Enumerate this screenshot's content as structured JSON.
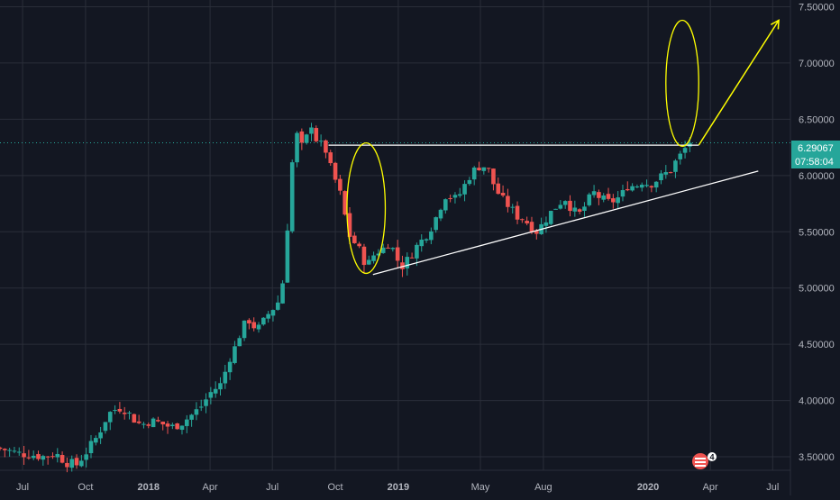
{
  "theme": {
    "background": "#131722",
    "grid": "#2a2e39",
    "axis_text": "#b2b5be",
    "up": "#26a69a",
    "down": "#ef5350",
    "annotation_yellow": "#ffff00",
    "annotation_white": "#ffffff",
    "price_line": "#26a69a"
  },
  "price_badge": {
    "price": "6.29067",
    "countdown": "07:58:04"
  },
  "overlay_icon": {
    "name": "us-flag-icon",
    "count": "4"
  },
  "chart_data": {
    "type": "candlestick",
    "title": "",
    "xlabel": "",
    "ylabel": "",
    "ylim": [
      3.38,
      7.56
    ],
    "xlim": [
      "2017-05-29",
      "2020-07-27"
    ],
    "grid": true,
    "y_ticks": [
      {
        "value": 3.5,
        "label": "3.50000"
      },
      {
        "value": 4.0,
        "label": "4.00000"
      },
      {
        "value": 4.5,
        "label": "4.50000"
      },
      {
        "value": 5.0,
        "label": "5.00000"
      },
      {
        "value": 5.5,
        "label": "5.50000"
      },
      {
        "value": 6.0,
        "label": "6.00000"
      },
      {
        "value": 6.5,
        "label": "6.50000"
      },
      {
        "value": 7.0,
        "label": "7.00000"
      },
      {
        "value": 7.5,
        "label": "7.50000"
      }
    ],
    "x_ticks": [
      {
        "date": "2017-07-01",
        "label": "Jul",
        "bold": false
      },
      {
        "date": "2017-10-01",
        "label": "Oct",
        "bold": false
      },
      {
        "date": "2018-01-01",
        "label": "2018",
        "bold": true
      },
      {
        "date": "2018-04-01",
        "label": "Apr",
        "bold": false
      },
      {
        "date": "2018-07-01",
        "label": "Jul",
        "bold": false
      },
      {
        "date": "2018-10-01",
        "label": "Oct",
        "bold": false
      },
      {
        "date": "2019-01-01",
        "label": "2019",
        "bold": true
      },
      {
        "date": "2019-05-01",
        "label": "May",
        "bold": false
      },
      {
        "date": "2019-08-01",
        "label": "Aug",
        "bold": false
      },
      {
        "date": "2020-01-01",
        "label": "2020",
        "bold": true
      },
      {
        "date": "2020-04-01",
        "label": "Apr",
        "bold": false
      },
      {
        "date": "2020-07-01",
        "label": "Jul",
        "bold": false
      }
    ],
    "close_path": [
      [
        "2017-05-29",
        3.58
      ],
      [
        "2017-06-15",
        3.56
      ],
      [
        "2017-07-01",
        3.53
      ],
      [
        "2017-07-20",
        3.52
      ],
      [
        "2017-08-10",
        3.5
      ],
      [
        "2017-08-25",
        3.53
      ],
      [
        "2017-09-10",
        3.45
      ],
      [
        "2017-09-25",
        3.43
      ],
      [
        "2017-10-10",
        3.55
      ],
      [
        "2017-10-25",
        3.68
      ],
      [
        "2017-11-10",
        3.88
      ],
      [
        "2017-11-25",
        3.94
      ],
      [
        "2017-12-05",
        3.92
      ],
      [
        "2017-12-15",
        3.85
      ],
      [
        "2017-12-28",
        3.78
      ],
      [
        "2018-01-10",
        3.82
      ],
      [
        "2018-01-25",
        3.8
      ],
      [
        "2018-02-10",
        3.76
      ],
      [
        "2018-02-25",
        3.8
      ],
      [
        "2018-03-10",
        3.86
      ],
      [
        "2018-03-25",
        3.94
      ],
      [
        "2018-04-10",
        4.08
      ],
      [
        "2018-04-25",
        4.15
      ],
      [
        "2018-05-05",
        4.36
      ],
      [
        "2018-05-15",
        4.48
      ],
      [
        "2018-05-25",
        4.65
      ],
      [
        "2018-06-05",
        4.72
      ],
      [
        "2018-06-15",
        4.62
      ],
      [
        "2018-06-25",
        4.7
      ],
      [
        "2018-07-05",
        4.8
      ],
      [
        "2018-07-15",
        4.85
      ],
      [
        "2018-07-25",
        5.1
      ],
      [
        "2018-08-03",
        5.9
      ],
      [
        "2018-08-10",
        6.4
      ],
      [
        "2018-08-17",
        6.3
      ],
      [
        "2018-08-24",
        6.2
      ],
      [
        "2018-08-31",
        6.52
      ],
      [
        "2018-09-07",
        6.38
      ],
      [
        "2018-09-14",
        6.25
      ],
      [
        "2018-09-21",
        6.3
      ],
      [
        "2018-09-28",
        6.12
      ],
      [
        "2018-10-05",
        6.0
      ],
      [
        "2018-10-12",
        5.9
      ],
      [
        "2018-10-19",
        5.75
      ],
      [
        "2018-10-26",
        5.5
      ],
      [
        "2018-11-02",
        5.42
      ],
      [
        "2018-11-09",
        5.38
      ],
      [
        "2018-11-16",
        5.28
      ],
      [
        "2018-11-23",
        5.2
      ],
      [
        "2018-11-30",
        5.25
      ],
      [
        "2018-12-07",
        5.35
      ],
      [
        "2018-12-14",
        5.3
      ],
      [
        "2018-12-21",
        5.42
      ],
      [
        "2018-12-28",
        5.38
      ],
      [
        "2019-01-04",
        5.3
      ],
      [
        "2019-01-11",
        5.18
      ],
      [
        "2019-01-18",
        5.22
      ],
      [
        "2019-01-25",
        5.28
      ],
      [
        "2019-02-01",
        5.35
      ],
      [
        "2019-02-15",
        5.45
      ],
      [
        "2019-03-01",
        5.58
      ],
      [
        "2019-03-10",
        5.72
      ],
      [
        "2019-03-20",
        5.85
      ],
      [
        "2019-03-30",
        5.78
      ],
      [
        "2019-04-10",
        5.85
      ],
      [
        "2019-04-20",
        5.98
      ],
      [
        "2019-05-01",
        6.06
      ],
      [
        "2019-05-10",
        6.1
      ],
      [
        "2019-05-20",
        6.04
      ],
      [
        "2019-05-30",
        5.88
      ],
      [
        "2019-06-10",
        5.78
      ],
      [
        "2019-06-20",
        5.72
      ],
      [
        "2019-06-30",
        5.64
      ],
      [
        "2019-07-10",
        5.62
      ],
      [
        "2019-07-20",
        5.55
      ],
      [
        "2019-07-30",
        5.5
      ],
      [
        "2019-08-10",
        5.6
      ],
      [
        "2019-08-20",
        5.68
      ],
      [
        "2019-08-30",
        5.75
      ],
      [
        "2019-09-10",
        5.8
      ],
      [
        "2019-09-20",
        5.68
      ],
      [
        "2019-09-30",
        5.66
      ],
      [
        "2019-10-10",
        5.75
      ],
      [
        "2019-10-20",
        5.85
      ],
      [
        "2019-10-30",
        5.8
      ],
      [
        "2019-11-10",
        5.76
      ],
      [
        "2019-11-20",
        5.78
      ],
      [
        "2019-11-30",
        5.82
      ],
      [
        "2019-12-10",
        5.92
      ],
      [
        "2019-12-20",
        5.9
      ],
      [
        "2019-12-30",
        5.95
      ],
      [
        "2020-01-10",
        5.92
      ],
      [
        "2020-01-20",
        5.96
      ],
      [
        "2020-01-30",
        6.0
      ],
      [
        "2020-02-10",
        6.05
      ],
      [
        "2020-02-20",
        6.15
      ],
      [
        "2020-02-28",
        6.2
      ],
      [
        "2020-03-06",
        6.29
      ]
    ],
    "annotations": {
      "resistance_line": {
        "from": [
          "2018-09-21",
          6.27
        ],
        "to": [
          "2020-03-15",
          6.27
        ],
        "color": "#ffffff"
      },
      "support_line": {
        "from": [
          "2018-11-25",
          5.12
        ],
        "to": [
          "2020-06-10",
          6.04
        ],
        "color": "#ffffff"
      },
      "ellipse_bottom": {
        "center": [
          "2018-11-15",
          5.71
        ],
        "rx_days": 28,
        "ry": 0.58,
        "color": "#ffff00"
      },
      "ellipse_top": {
        "center": [
          "2020-02-20",
          6.82
        ],
        "rx_days": 24,
        "ry": 0.56,
        "color": "#ffff00"
      },
      "arrow_up": {
        "from": [
          "2020-03-15",
          6.27
        ],
        "to": [
          "2020-07-10",
          7.38
        ],
        "color": "#ffff00"
      },
      "current_price_line": {
        "value": 6.29067,
        "color": "#26a69a"
      }
    }
  }
}
